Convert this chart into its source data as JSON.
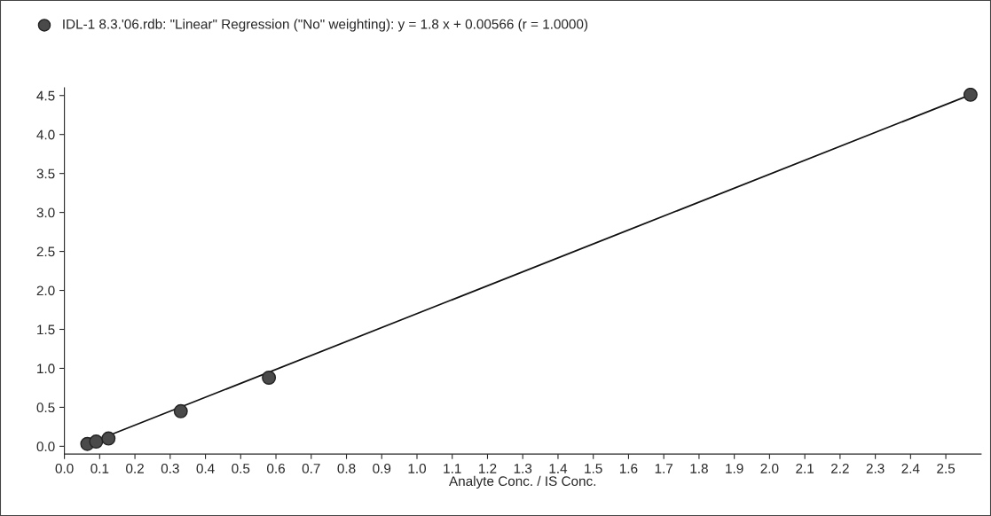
{
  "chart_data": {
    "type": "scatter",
    "xlabel": "Analyte Conc. / IS Conc.",
    "series": [
      {
        "name": "IDL-1 8.3.'06.rdb: \"Linear\" Regression (\"No\" weighting): y = 1.8 x + 0.00566 (r = 1.0000)",
        "color": "#4a4a4a",
        "marker": "circle",
        "x": [
          0.065,
          0.09,
          0.125,
          0.33,
          0.58,
          2.57
        ],
        "values": [
          0.03,
          0.06,
          0.1,
          0.45,
          0.88,
          4.51
        ]
      },
      {
        "type": "line",
        "color": "#111111",
        "line_style": "solid",
        "x": [
          0.065,
          2.57
        ],
        "values": [
          0.03,
          4.51
        ]
      }
    ],
    "xlim": [
      0.0,
      2.6
    ],
    "ylim": [
      -0.1,
      4.6
    ],
    "xticks": [
      {
        "value": 0,
        "label": "0.0"
      },
      0.1,
      0.2,
      0.3,
      0.4,
      0.5,
      0.6,
      0.7,
      0.8,
      0.9,
      {
        "value": 1,
        "label": "1.0"
      },
      1.1,
      1.2,
      1.3,
      1.4,
      1.5,
      1.6,
      1.7,
      1.8,
      1.9,
      {
        "value": 2,
        "label": "2.0"
      },
      2.1,
      2.2,
      2.3,
      2.4,
      2.5
    ],
    "yticks": [
      {
        "value": 0,
        "label": "0.0"
      },
      0.5,
      {
        "value": 1,
        "label": "1.0"
      },
      1.5,
      {
        "value": 2,
        "label": "2.0"
      },
      2.5,
      {
        "value": 3,
        "label": "3.0"
      },
      3.5,
      {
        "value": 4,
        "label": "4.0"
      },
      4.5
    ],
    "grid": false,
    "legend": "top left"
  }
}
